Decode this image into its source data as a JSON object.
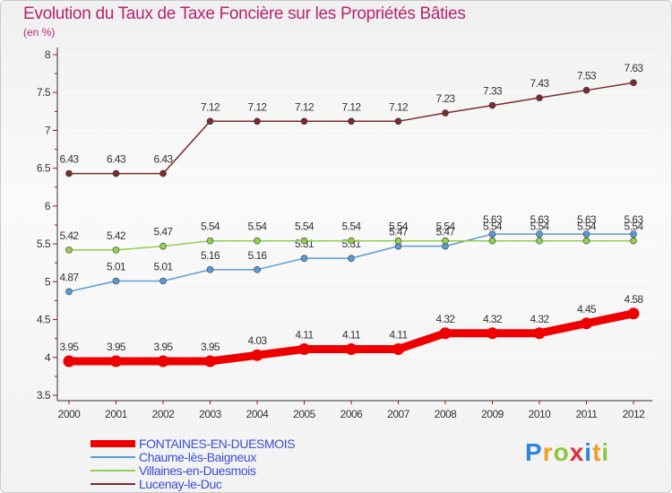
{
  "header": {
    "title": "Evolution du Taux de Taxe Foncière sur les Propriétés Bâties",
    "unit": "(en %)"
  },
  "chart_data": {
    "type": "line",
    "title": "Evolution du Taux de Taxe Foncière sur les Propriétés Bâties",
    "ylabel": "(en %)",
    "xlabel": "",
    "categories": [
      "2000",
      "2001",
      "2002",
      "2003",
      "2004",
      "2005",
      "2006",
      "2007",
      "2008",
      "2009",
      "2010",
      "2011",
      "2012"
    ],
    "yticks": [
      "3.5",
      "4",
      "4.5",
      "5",
      "5.5",
      "6",
      "6.5",
      "7",
      "7.5",
      "8"
    ],
    "ylim": [
      3.5,
      8
    ],
    "grid": "horizontal",
    "legend_position": "bottom-left",
    "series": [
      {
        "name": "FONTAINES-EN-DUESMOIS",
        "color": "#ee0000",
        "emphasis": true,
        "values": [
          3.95,
          3.95,
          3.95,
          3.95,
          4.03,
          4.11,
          4.11,
          4.11,
          4.32,
          4.32,
          4.32,
          4.45,
          4.58
        ],
        "labels": [
          "3.95",
          "3.95",
          "3.95",
          "3.95",
          "4.03",
          "4.11",
          "4.11",
          "4.11",
          "4.32",
          "4.32",
          "4.32",
          "4.45",
          "4.58"
        ]
      },
      {
        "name": "Chaume-lès-Baigneux",
        "color": "#5b9bd5",
        "emphasis": false,
        "values": [
          4.87,
          5.01,
          5.01,
          5.16,
          5.16,
          5.31,
          5.31,
          5.47,
          5.47,
          5.63,
          5.63,
          5.63,
          5.63
        ],
        "labels": [
          "4.87",
          "5.01",
          "5.01",
          "5.16",
          "5.16",
          "5.31",
          "5.31",
          "5.47",
          "5.47",
          "5.63",
          "5.63",
          "5.63",
          "5.63"
        ]
      },
      {
        "name": "Villaines-en-Duesmois",
        "color": "#92d050",
        "emphasis": false,
        "values": [
          5.42,
          5.42,
          5.47,
          5.54,
          5.54,
          5.54,
          5.54,
          5.54,
          5.54,
          5.54,
          5.54,
          5.54,
          5.54
        ],
        "labels": [
          "5.42",
          "5.42",
          "5.47",
          "5.54",
          "5.54",
          "5.54",
          "5.54",
          "5.54",
          "5.54",
          "5.54",
          "5.54",
          "5.54",
          "5.54"
        ]
      },
      {
        "name": "Lucenay-le-Duc",
        "color": "#7b2d2d",
        "emphasis": false,
        "values": [
          6.43,
          6.43,
          6.43,
          7.12,
          7.12,
          7.12,
          7.12,
          7.12,
          7.23,
          7.33,
          7.43,
          7.53,
          7.63
        ],
        "labels": [
          "6.43",
          "6.43",
          "6.43",
          "7.12",
          "7.12",
          "7.12",
          "7.12",
          "7.12",
          "7.23",
          "7.33",
          "7.43",
          "7.53",
          "7.63"
        ]
      }
    ]
  },
  "logo": {
    "letters": [
      "P",
      "r",
      "o",
      "x",
      "i",
      "t",
      "i"
    ],
    "colors": [
      "#2e86d6",
      "#f0a020",
      "#8dc63f",
      "#e0303a",
      "#2e86d6",
      "#f0a020",
      "#8dc63f"
    ]
  }
}
